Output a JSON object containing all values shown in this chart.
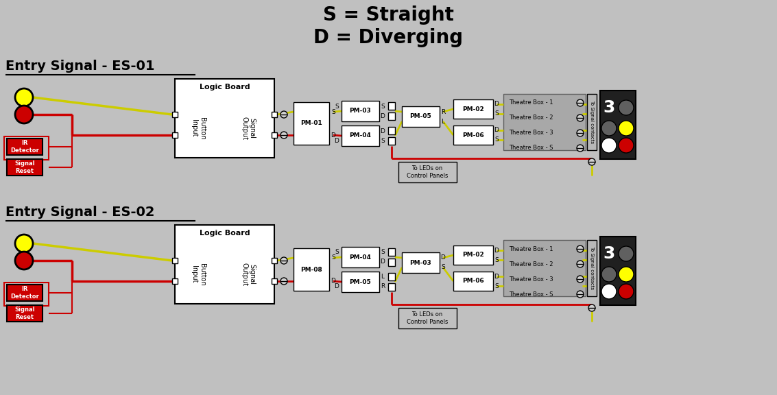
{
  "bg_color": "#c0c0c0",
  "title_line1": "S = Straight",
  "title_line2": "D = Diverging",
  "title_fontsize": 20,
  "section1_label": "Entry Signal - ES-01",
  "section2_label": "Entry Signal - ES-02",
  "label_fontsize": 14,
  "wire_yellow": "#cccc00",
  "wire_red": "#cc0000",
  "box_white": "#ffffff",
  "box_red": "#cc0000",
  "signal_bg": "#202020",
  "theatre_bg": "#b0b0b0"
}
